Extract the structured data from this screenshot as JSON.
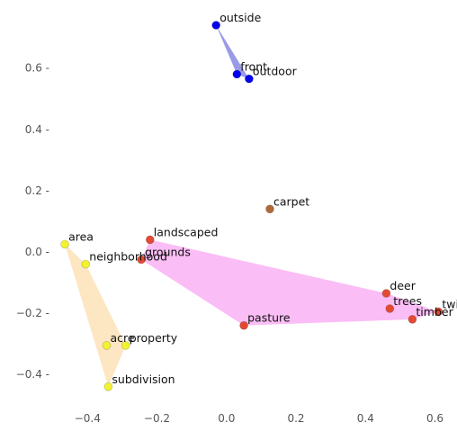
{
  "chart_data": {
    "type": "scatter",
    "title": "",
    "xlabel": "",
    "ylabel": "",
    "xlim": [
      -0.5,
      0.63
    ],
    "ylim": [
      -0.5,
      0.75
    ],
    "grid": false,
    "x_ticks": [
      {
        "value": -0.4,
        "label": "−0.4"
      },
      {
        "value": -0.2,
        "label": "−0.2"
      },
      {
        "value": 0.0,
        "label": "0.0"
      },
      {
        "value": 0.2,
        "label": "0.2"
      },
      {
        "value": 0.4,
        "label": "0.4"
      },
      {
        "value": 0.6,
        "label": "0.6"
      }
    ],
    "y_ticks": [
      {
        "value": -0.4,
        "label": "−0.4 -"
      },
      {
        "value": -0.2,
        "label": "−0.2 -"
      },
      {
        "value": 0.0,
        "label": "0.0 -"
      },
      {
        "value": 0.2,
        "label": "0.2 -"
      },
      {
        "value": 0.4,
        "label": "0.4 -"
      },
      {
        "value": 0.6,
        "label": "0.6 -"
      }
    ],
    "series": [
      {
        "color": "#0000ee",
        "hull_color": "#9a9ae6",
        "points": [
          {
            "label": "outside",
            "x": -0.03,
            "y": 0.74
          },
          {
            "label": "front",
            "x": 0.03,
            "y": 0.58
          },
          {
            "label": "outdoor",
            "x": 0.065,
            "y": 0.565
          }
        ]
      },
      {
        "color": "#b06a3a",
        "hull_color": null,
        "points": [
          {
            "label": "carpet",
            "x": 0.125,
            "y": 0.14
          }
        ]
      },
      {
        "color": "#e34a33",
        "hull_color": "#fbbdf5",
        "points": [
          {
            "label": "landscaped",
            "x": -0.22,
            "y": 0.04
          },
          {
            "label": "grounds",
            "x": -0.245,
            "y": -0.025
          },
          {
            "label": "pasture",
            "x": 0.05,
            "y": -0.24
          },
          {
            "label": "deer",
            "x": 0.46,
            "y": -0.135
          },
          {
            "label": "trees",
            "x": 0.47,
            "y": -0.185
          },
          {
            "label": "timber",
            "x": 0.535,
            "y": -0.22
          },
          {
            "label": "twig",
            "x": 0.61,
            "y": -0.195
          }
        ]
      },
      {
        "color": "#f2f230",
        "hull_color": "#fde6c2",
        "points": [
          {
            "label": "area",
            "x": -0.465,
            "y": 0.025
          },
          {
            "label": "neighborhood",
            "x": -0.405,
            "y": -0.04
          },
          {
            "label": "acre",
            "x": -0.345,
            "y": -0.305
          },
          {
            "label": "property",
            "x": -0.29,
            "y": -0.305
          },
          {
            "label": "subdivision",
            "x": -0.34,
            "y": -0.44
          }
        ]
      }
    ]
  }
}
